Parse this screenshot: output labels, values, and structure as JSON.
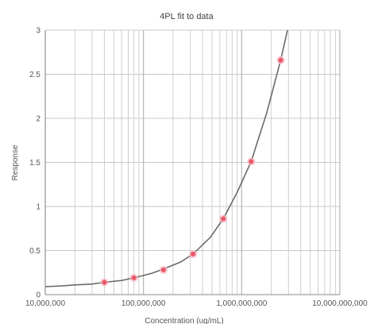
{
  "chart_data": {
    "type": "scatter",
    "title": "4PL fit to data",
    "xlabel": "Concentration (ug/mL)",
    "ylabel": "Response",
    "x_scale": "log",
    "xlim": [
      10000000,
      10000000000
    ],
    "ylim": [
      0,
      3
    ],
    "x_tick_values": [
      10000000,
      100000000,
      1000000000,
      10000000000
    ],
    "x_tick_labels": [
      "10,000,000",
      "100,000,000",
      "1,000,000,000",
      "10,000,000,000"
    ],
    "y_tick_values": [
      0,
      0.5,
      1,
      1.5,
      2,
      2.5,
      3
    ],
    "y_tick_labels": [
      "0",
      "0.5",
      "1",
      "1.5",
      "2",
      "2.5",
      "3"
    ],
    "grid": true,
    "series": [
      {
        "kind": "points",
        "color": "#e8586a",
        "x": [
          40000000,
          80000000,
          160000000,
          320000000,
          650000000,
          1250000000,
          2500000000
        ],
        "y": [
          0.14,
          0.19,
          0.28,
          0.46,
          0.86,
          1.51,
          2.66
        ]
      },
      {
        "kind": "fit-curve",
        "color": "#6e6a66",
        "model": "4PL",
        "x": [
          10000000,
          15000000,
          20000000,
          30000000,
          40000000,
          60000000,
          80000000,
          120000000,
          160000000,
          240000000,
          320000000,
          480000000,
          650000000,
          900000000,
          1250000000,
          1800000000,
          2500000000,
          3000000000
        ],
        "y": [
          0.09,
          0.1,
          0.11,
          0.12,
          0.14,
          0.16,
          0.19,
          0.24,
          0.29,
          0.37,
          0.46,
          0.65,
          0.86,
          1.16,
          1.51,
          2.06,
          2.66,
          3.05
        ]
      }
    ]
  }
}
